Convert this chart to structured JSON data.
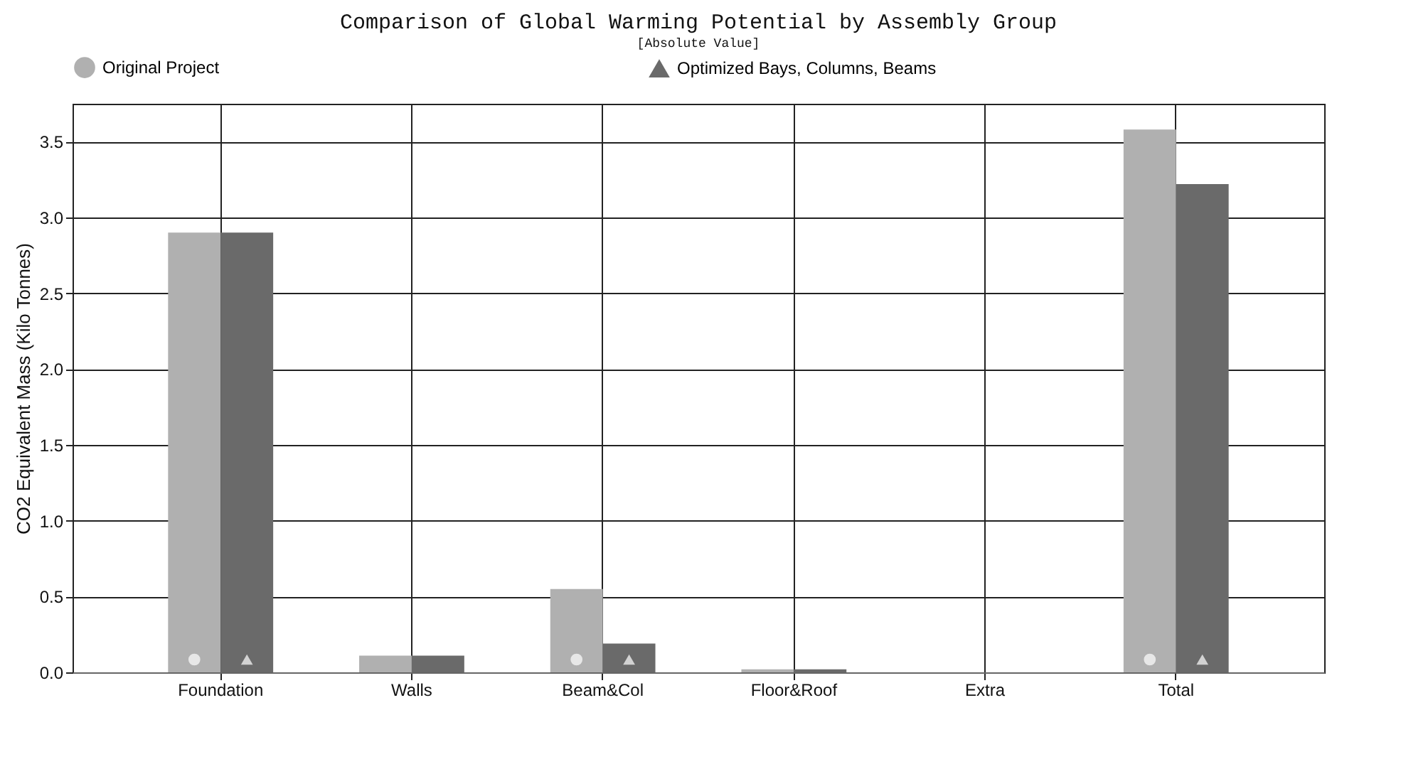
{
  "chart_data": {
    "type": "bar",
    "title": "Comparison of Global Warming Potential by Assembly Group",
    "subtitle": "[Absolute Value]",
    "ylabel": "CO2 Equivalent Mass  (Kilo Tonnes)",
    "categories": [
      "Foundation",
      "Walls",
      "Beam&Col",
      "Floor&Roof",
      "Extra",
      "Total"
    ],
    "series": [
      {
        "name": "Original Project",
        "color": "#b0b0b0",
        "marker": "circle",
        "values": [
          2.9,
          0.11,
          0.55,
          0.02,
          0,
          3.58
        ]
      },
      {
        "name": "Optimized Bays, Columns, Beams",
        "color": "#6a6a6a",
        "marker": "triangle",
        "values": [
          2.9,
          0.11,
          0.19,
          0.02,
          0,
          3.22
        ]
      }
    ],
    "ylim": [
      0,
      3.75
    ],
    "yticks": [
      {
        "value": 0,
        "label": "0.0"
      },
      0.5,
      {
        "value": 1,
        "label": "1.0"
      },
      1.5,
      {
        "value": 2,
        "label": "2.0"
      },
      2.5,
      {
        "value": 3,
        "label": "3.0"
      },
      3.5
    ],
    "grid": true,
    "legend": "top"
  }
}
